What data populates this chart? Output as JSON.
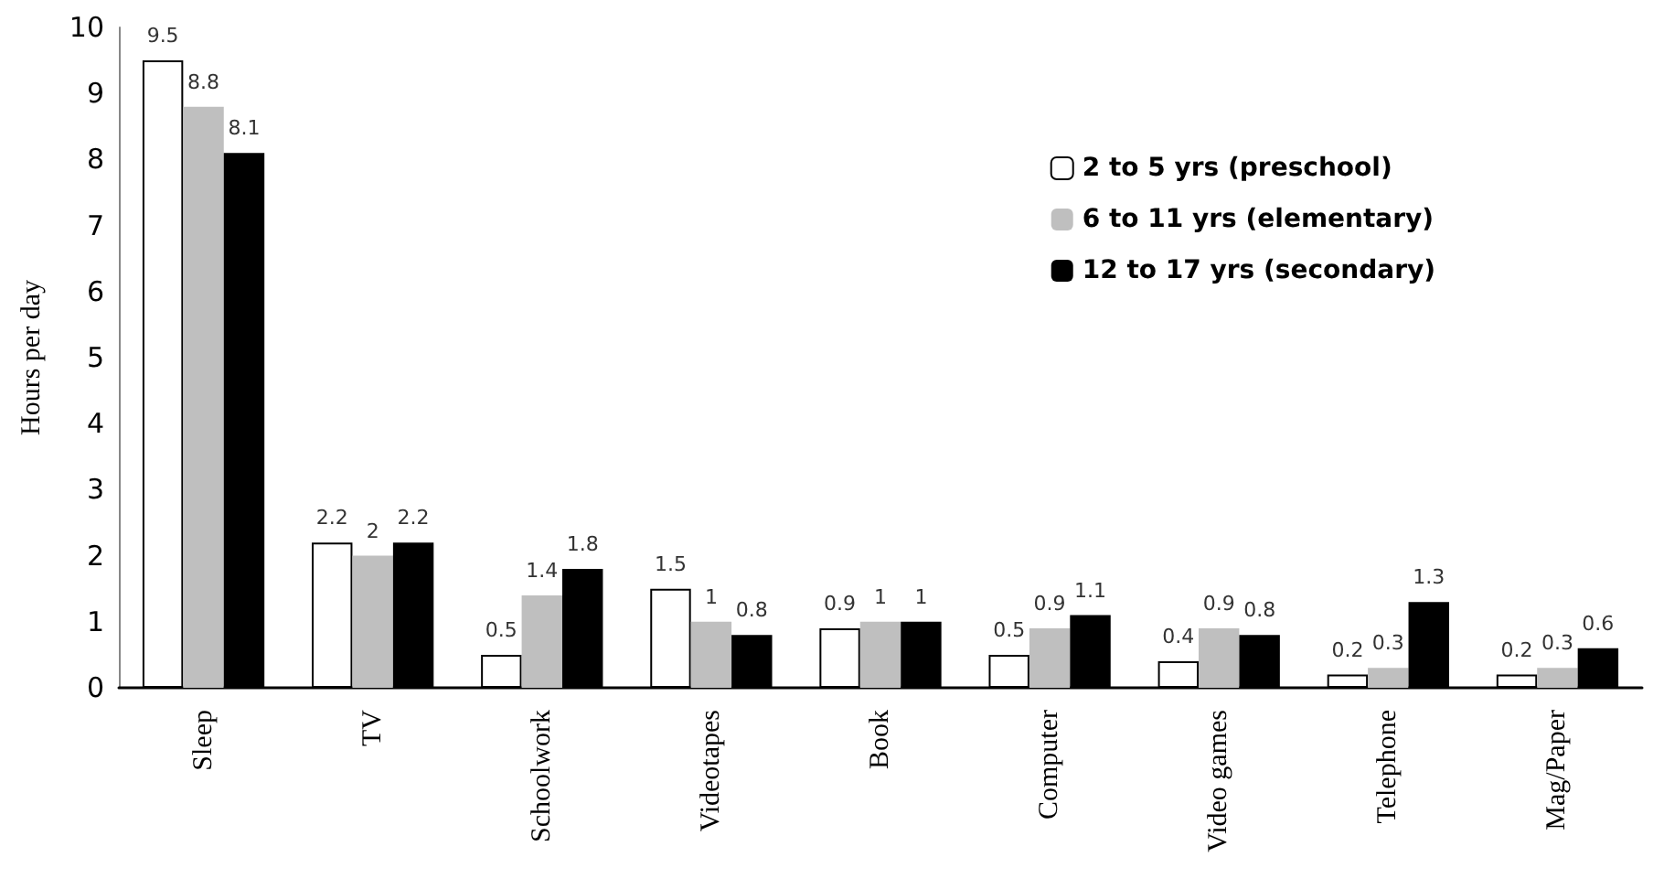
{
  "chart_data": {
    "type": "bar",
    "ylabel": "Hours per day",
    "categories": [
      "Sleep",
      "TV",
      "Schoolwork",
      "Videotapes",
      "Book",
      "Computer",
      "Video games",
      "Telephone",
      "Mag/Paper"
    ],
    "series": [
      {
        "name": "2 to 5 yrs (preschool)",
        "color": "#ffffff",
        "values": [
          9.5,
          2.2,
          0.5,
          1.5,
          0.9,
          0.5,
          0.4,
          0.2,
          0.2
        ]
      },
      {
        "name": "6 to 11 yrs (elementary)",
        "color": "#bfbfbf",
        "values": [
          8.8,
          2,
          1.4,
          1,
          1,
          0.9,
          0.9,
          0.3,
          0.3
        ]
      },
      {
        "name": "12 to 17 yrs (secondary)",
        "color": "#000000",
        "values": [
          8.1,
          2.2,
          1.8,
          0.8,
          1,
          1.1,
          0.8,
          1.3,
          0.6
        ]
      }
    ],
    "ylim": [
      0,
      10
    ],
    "yticks": [
      0,
      1,
      2,
      3,
      4,
      5,
      6,
      7,
      8,
      9,
      10
    ],
    "grid": false,
    "legend": "top right",
    "data_labels": true
  }
}
